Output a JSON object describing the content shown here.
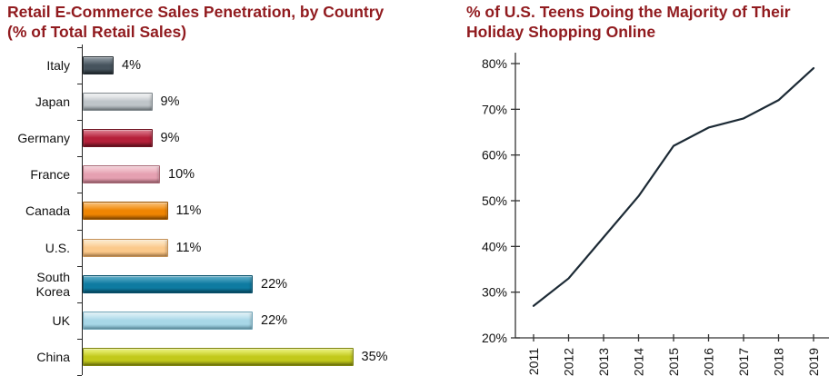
{
  "page": {
    "background": "#ffffff",
    "accent_title_color": "#911b1f"
  },
  "chart_data": [
    {
      "type": "bar",
      "orientation": "horizontal",
      "title": "Retail E-Commerce Sales Penetration, by Country (% of Total Retail Sales)",
      "title_lines": [
        "Retail E-Commerce Sales Penetration, by Country",
        "(% of Total Retail Sales)"
      ],
      "title_color": "#911b1f",
      "categories": [
        "Italy",
        "Japan",
        "Germany",
        "France",
        "Canada",
        "U.S.",
        "South Korea",
        "UK",
        "China"
      ],
      "values": [
        4,
        9,
        9,
        10,
        11,
        11,
        22,
        22,
        35
      ],
      "value_labels": [
        "4%",
        "9%",
        "9%",
        "10%",
        "11%",
        "11%",
        "22%",
        "22%",
        "35%"
      ],
      "xlim": [
        0,
        35
      ],
      "grid": false,
      "legend": "none",
      "axis_color": "#262626",
      "bar_styles": [
        {
          "light": "#7e8a93",
          "main": "#46535d",
          "dark": "#232b31"
        },
        {
          "light": "#e9ebed",
          "main": "#bfc5c9",
          "dark": "#7f878c"
        },
        {
          "light": "#d4677b",
          "main": "#b5203a",
          "dark": "#6f1322"
        },
        {
          "light": "#f2c6d0",
          "main": "#e5a0b1",
          "dark": "#a96a77"
        },
        {
          "light": "#f8b35b",
          "main": "#ef8502",
          "dark": "#9c5601"
        },
        {
          "light": "#fde4c0",
          "main": "#fbc98b",
          "dark": "#c49157"
        },
        {
          "light": "#4ba2c0",
          "main": "#0e7ba1",
          "dark": "#07506b"
        },
        {
          "light": "#d4ecf4",
          "main": "#a8d7e7",
          "dark": "#6fa4b7"
        },
        {
          "light": "#e3ea67",
          "main": "#c2c91b",
          "dark": "#7f850e"
        }
      ]
    },
    {
      "type": "line",
      "title": "% of U.S. Teens Doing the Majority of Their Holiday Shopping Online",
      "title_lines": [
        "% of U.S. Teens Doing the Majority of Their",
        "Holiday Shopping Online"
      ],
      "title_color": "#911b1f",
      "x": [
        "2011",
        "2012",
        "2013",
        "2014",
        "2015",
        "2016",
        "2017",
        "2018",
        "2019"
      ],
      "values": [
        27,
        33,
        42,
        51,
        62,
        66,
        68,
        72,
        79
      ],
      "ylim": [
        20,
        80
      ],
      "ytick_step": 10,
      "ytick_labels": [
        "20%",
        "30%",
        "40%",
        "50%",
        "60%",
        "70%",
        "80%"
      ],
      "grid": false,
      "legend": "none",
      "line_color": "#1c2a35",
      "axis_color": "#333333"
    }
  ]
}
